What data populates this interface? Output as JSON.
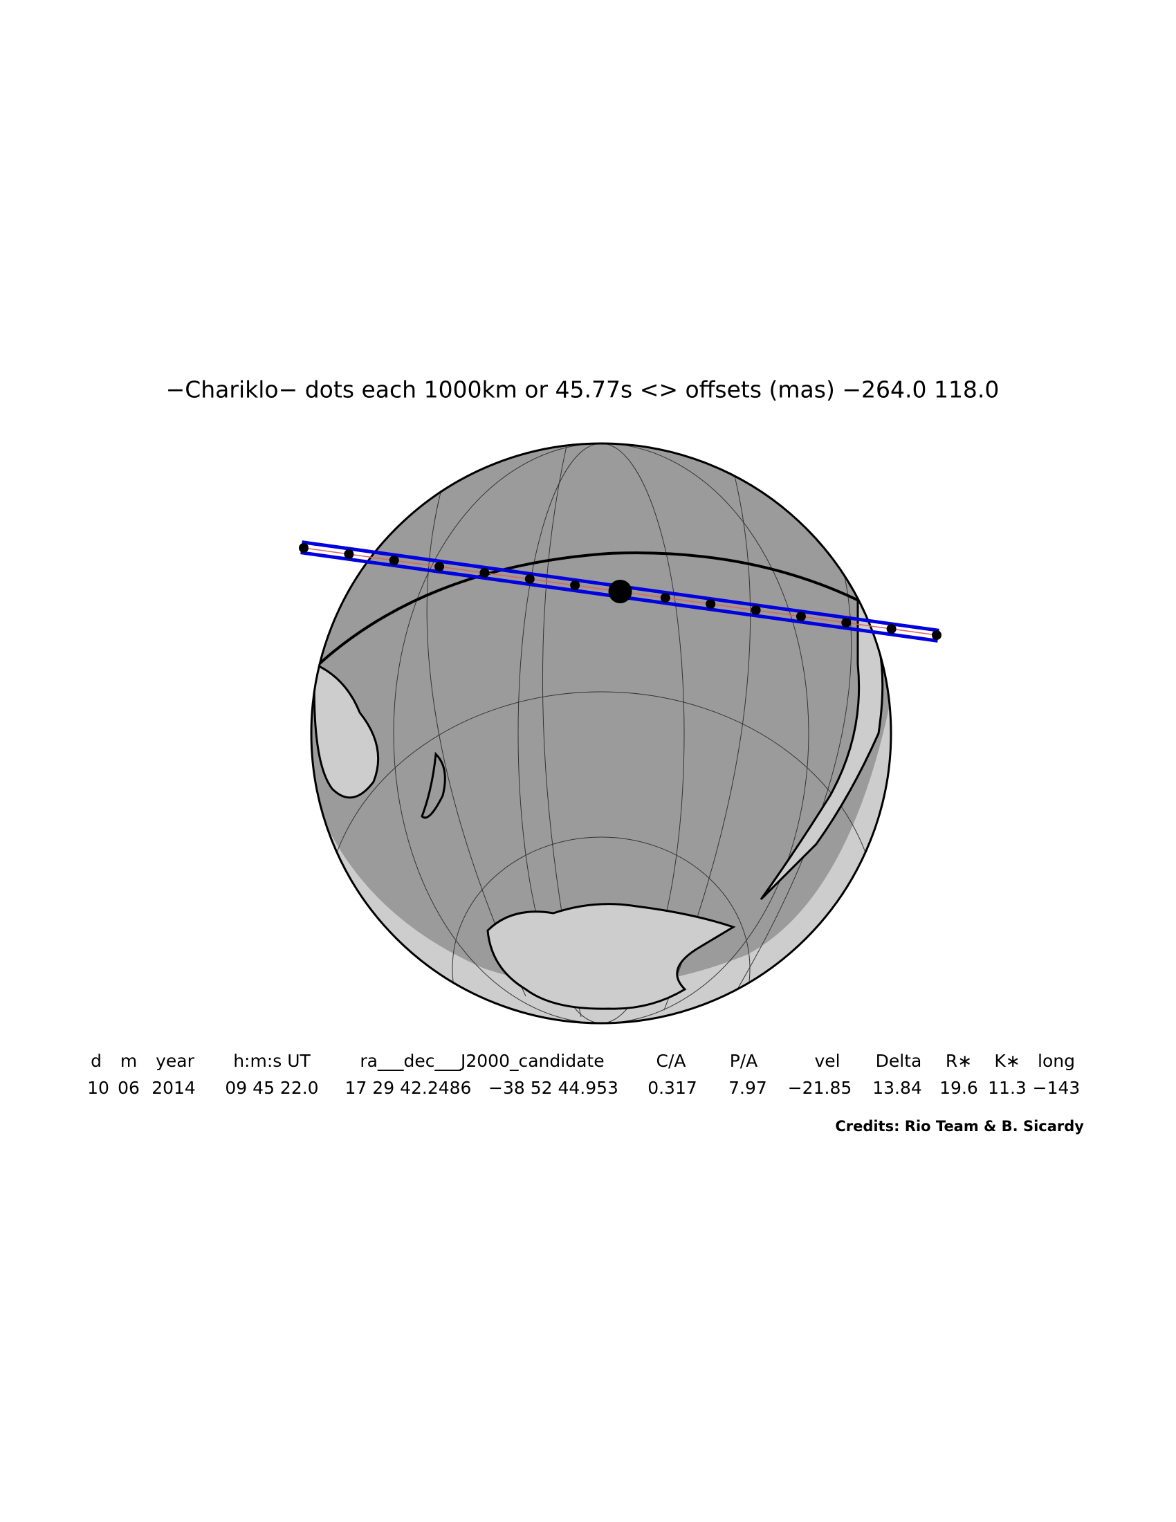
{
  "title": "−Chariklo− dots each 1000km or 45.77s <> offsets (mas) −264.0  118.0",
  "table": {
    "header": [
      "d",
      "m",
      "year",
      "h:m:s UT",
      "ra___dec___J2000_candidate",
      "C/A",
      "P/A",
      "vel",
      "Delta",
      "R∗",
      "K∗",
      "long"
    ],
    "row": [
      "10",
      "06",
      "2014",
      "09 45 22.0",
      "17 29 42.2486",
      "−38 52 44.953",
      "0.317",
      "7.97",
      "−21.85",
      "13.84",
      "19.6",
      "11.3",
      "−143"
    ]
  },
  "credits": "Credits: Rio Team & B. Sicardy"
}
